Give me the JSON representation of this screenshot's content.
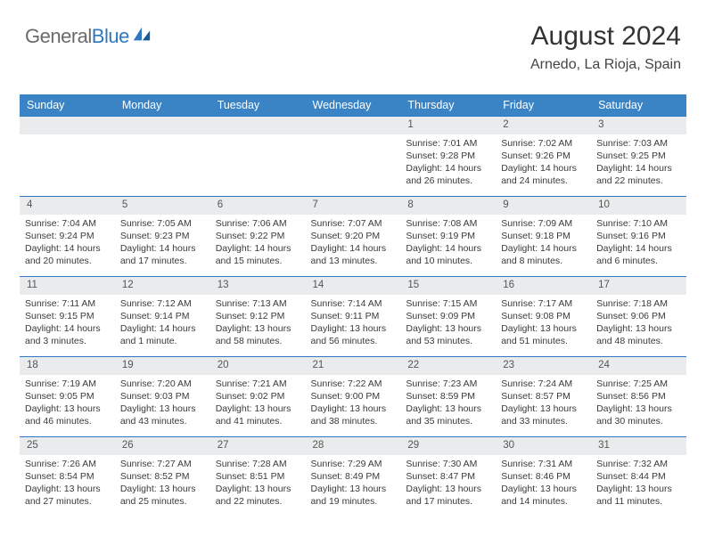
{
  "brand": {
    "part1": "General",
    "part2": "Blue"
  },
  "header": {
    "month": "August 2024",
    "location": "Arnedo, La Rioja, Spain"
  },
  "colors": {
    "header_bg": "#3a84c6",
    "row_divider": "#2f78bf",
    "daynum_bg": "#e9ebec",
    "text": "#3a3a3a",
    "brand_gray": "#6a6a6a",
    "brand_blue": "#2f78bf"
  },
  "weekdays": [
    "Sunday",
    "Monday",
    "Tuesday",
    "Wednesday",
    "Thursday",
    "Friday",
    "Saturday"
  ],
  "weeks": [
    {
      "nums": [
        "",
        "",
        "",
        "",
        "1",
        "2",
        "3"
      ],
      "cells": [
        {
          "l1": "",
          "l2": "",
          "l3": "",
          "l4": ""
        },
        {
          "l1": "",
          "l2": "",
          "l3": "",
          "l4": ""
        },
        {
          "l1": "",
          "l2": "",
          "l3": "",
          "l4": ""
        },
        {
          "l1": "",
          "l2": "",
          "l3": "",
          "l4": ""
        },
        {
          "l1": "Sunrise: 7:01 AM",
          "l2": "Sunset: 9:28 PM",
          "l3": "Daylight: 14 hours",
          "l4": "and 26 minutes."
        },
        {
          "l1": "Sunrise: 7:02 AM",
          "l2": "Sunset: 9:26 PM",
          "l3": "Daylight: 14 hours",
          "l4": "and 24 minutes."
        },
        {
          "l1": "Sunrise: 7:03 AM",
          "l2": "Sunset: 9:25 PM",
          "l3": "Daylight: 14 hours",
          "l4": "and 22 minutes."
        }
      ]
    },
    {
      "nums": [
        "4",
        "5",
        "6",
        "7",
        "8",
        "9",
        "10"
      ],
      "cells": [
        {
          "l1": "Sunrise: 7:04 AM",
          "l2": "Sunset: 9:24 PM",
          "l3": "Daylight: 14 hours",
          "l4": "and 20 minutes."
        },
        {
          "l1": "Sunrise: 7:05 AM",
          "l2": "Sunset: 9:23 PM",
          "l3": "Daylight: 14 hours",
          "l4": "and 17 minutes."
        },
        {
          "l1": "Sunrise: 7:06 AM",
          "l2": "Sunset: 9:22 PM",
          "l3": "Daylight: 14 hours",
          "l4": "and 15 minutes."
        },
        {
          "l1": "Sunrise: 7:07 AM",
          "l2": "Sunset: 9:20 PM",
          "l3": "Daylight: 14 hours",
          "l4": "and 13 minutes."
        },
        {
          "l1": "Sunrise: 7:08 AM",
          "l2": "Sunset: 9:19 PM",
          "l3": "Daylight: 14 hours",
          "l4": "and 10 minutes."
        },
        {
          "l1": "Sunrise: 7:09 AM",
          "l2": "Sunset: 9:18 PM",
          "l3": "Daylight: 14 hours",
          "l4": "and 8 minutes."
        },
        {
          "l1": "Sunrise: 7:10 AM",
          "l2": "Sunset: 9:16 PM",
          "l3": "Daylight: 14 hours",
          "l4": "and 6 minutes."
        }
      ]
    },
    {
      "nums": [
        "11",
        "12",
        "13",
        "14",
        "15",
        "16",
        "17"
      ],
      "cells": [
        {
          "l1": "Sunrise: 7:11 AM",
          "l2": "Sunset: 9:15 PM",
          "l3": "Daylight: 14 hours",
          "l4": "and 3 minutes."
        },
        {
          "l1": "Sunrise: 7:12 AM",
          "l2": "Sunset: 9:14 PM",
          "l3": "Daylight: 14 hours",
          "l4": "and 1 minute."
        },
        {
          "l1": "Sunrise: 7:13 AM",
          "l2": "Sunset: 9:12 PM",
          "l3": "Daylight: 13 hours",
          "l4": "and 58 minutes."
        },
        {
          "l1": "Sunrise: 7:14 AM",
          "l2": "Sunset: 9:11 PM",
          "l3": "Daylight: 13 hours",
          "l4": "and 56 minutes."
        },
        {
          "l1": "Sunrise: 7:15 AM",
          "l2": "Sunset: 9:09 PM",
          "l3": "Daylight: 13 hours",
          "l4": "and 53 minutes."
        },
        {
          "l1": "Sunrise: 7:17 AM",
          "l2": "Sunset: 9:08 PM",
          "l3": "Daylight: 13 hours",
          "l4": "and 51 minutes."
        },
        {
          "l1": "Sunrise: 7:18 AM",
          "l2": "Sunset: 9:06 PM",
          "l3": "Daylight: 13 hours",
          "l4": "and 48 minutes."
        }
      ]
    },
    {
      "nums": [
        "18",
        "19",
        "20",
        "21",
        "22",
        "23",
        "24"
      ],
      "cells": [
        {
          "l1": "Sunrise: 7:19 AM",
          "l2": "Sunset: 9:05 PM",
          "l3": "Daylight: 13 hours",
          "l4": "and 46 minutes."
        },
        {
          "l1": "Sunrise: 7:20 AM",
          "l2": "Sunset: 9:03 PM",
          "l3": "Daylight: 13 hours",
          "l4": "and 43 minutes."
        },
        {
          "l1": "Sunrise: 7:21 AM",
          "l2": "Sunset: 9:02 PM",
          "l3": "Daylight: 13 hours",
          "l4": "and 41 minutes."
        },
        {
          "l1": "Sunrise: 7:22 AM",
          "l2": "Sunset: 9:00 PM",
          "l3": "Daylight: 13 hours",
          "l4": "and 38 minutes."
        },
        {
          "l1": "Sunrise: 7:23 AM",
          "l2": "Sunset: 8:59 PM",
          "l3": "Daylight: 13 hours",
          "l4": "and 35 minutes."
        },
        {
          "l1": "Sunrise: 7:24 AM",
          "l2": "Sunset: 8:57 PM",
          "l3": "Daylight: 13 hours",
          "l4": "and 33 minutes."
        },
        {
          "l1": "Sunrise: 7:25 AM",
          "l2": "Sunset: 8:56 PM",
          "l3": "Daylight: 13 hours",
          "l4": "and 30 minutes."
        }
      ]
    },
    {
      "nums": [
        "25",
        "26",
        "27",
        "28",
        "29",
        "30",
        "31"
      ],
      "cells": [
        {
          "l1": "Sunrise: 7:26 AM",
          "l2": "Sunset: 8:54 PM",
          "l3": "Daylight: 13 hours",
          "l4": "and 27 minutes."
        },
        {
          "l1": "Sunrise: 7:27 AM",
          "l2": "Sunset: 8:52 PM",
          "l3": "Daylight: 13 hours",
          "l4": "and 25 minutes."
        },
        {
          "l1": "Sunrise: 7:28 AM",
          "l2": "Sunset: 8:51 PM",
          "l3": "Daylight: 13 hours",
          "l4": "and 22 minutes."
        },
        {
          "l1": "Sunrise: 7:29 AM",
          "l2": "Sunset: 8:49 PM",
          "l3": "Daylight: 13 hours",
          "l4": "and 19 minutes."
        },
        {
          "l1": "Sunrise: 7:30 AM",
          "l2": "Sunset: 8:47 PM",
          "l3": "Daylight: 13 hours",
          "l4": "and 17 minutes."
        },
        {
          "l1": "Sunrise: 7:31 AM",
          "l2": "Sunset: 8:46 PM",
          "l3": "Daylight: 13 hours",
          "l4": "and 14 minutes."
        },
        {
          "l1": "Sunrise: 7:32 AM",
          "l2": "Sunset: 8:44 PM",
          "l3": "Daylight: 13 hours",
          "l4": "and 11 minutes."
        }
      ]
    }
  ]
}
